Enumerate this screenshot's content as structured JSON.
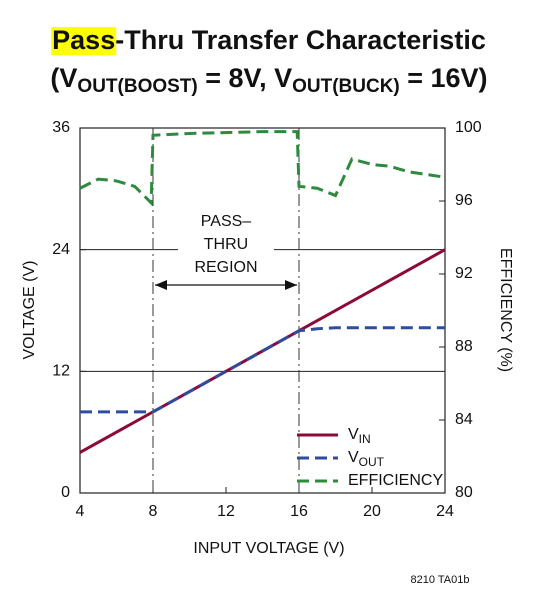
{
  "chart_data": {
    "type": "line",
    "title_parts": [
      {
        "text": "Pass",
        "highlight": true
      },
      {
        "text": "-Thru Transfer Characteristic"
      }
    ],
    "subtitle_parts": [
      {
        "text": "(V"
      },
      {
        "text": "OUT(BOOST)",
        "sub": true
      },
      {
        "text": " = 8V, V"
      },
      {
        "text": "OUT(BUCK)",
        "sub": true
      },
      {
        "text": " = 16V)"
      }
    ],
    "xlabel": "INPUT VOLTAGE (V)",
    "ylabel": "VOLTAGE (V)",
    "y2label": "EFFICIENCY (%)",
    "xlim": [
      4,
      24
    ],
    "xticks": [
      4,
      8,
      12,
      16,
      20,
      24
    ],
    "ylim": [
      0,
      36
    ],
    "yticks": [
      0,
      12,
      24,
      36
    ],
    "y2lim": [
      80,
      100
    ],
    "y2ticks": [
      80,
      84,
      88,
      92,
      96,
      100
    ],
    "grid": true,
    "region": [
      8,
      16
    ],
    "annotation": [
      "PASS–",
      "THRU",
      "REGION"
    ],
    "series": [
      {
        "name": "V",
        "name_sub": "IN",
        "color": "#8b0a3a",
        "dash": "solid",
        "x": [
          4,
          24
        ],
        "values": [
          4,
          24
        ]
      },
      {
        "name": "V",
        "name_sub": "OUT",
        "color": "#2f4c9e",
        "dash": "dashed",
        "x": [
          4,
          8,
          16,
          17,
          18,
          24
        ],
        "values": [
          8,
          8,
          16,
          16.2,
          16.3,
          16.3
        ]
      },
      {
        "name": "EFFICIENCY",
        "color": "#2e8b3e",
        "dash": "dashed",
        "axis": "y2",
        "x": [
          4,
          5,
          6,
          7,
          7.9,
          8,
          10,
          14,
          15.9,
          16,
          17,
          18,
          18.9,
          20,
          21,
          22,
          24
        ],
        "values": [
          96.7,
          97.2,
          97.1,
          96.8,
          95.9,
          99.6,
          99.7,
          99.8,
          99.8,
          96.8,
          96.7,
          96.3,
          98.3,
          98.0,
          97.9,
          97.6,
          97.3
        ]
      }
    ],
    "footnote": "8210 TA01b"
  }
}
